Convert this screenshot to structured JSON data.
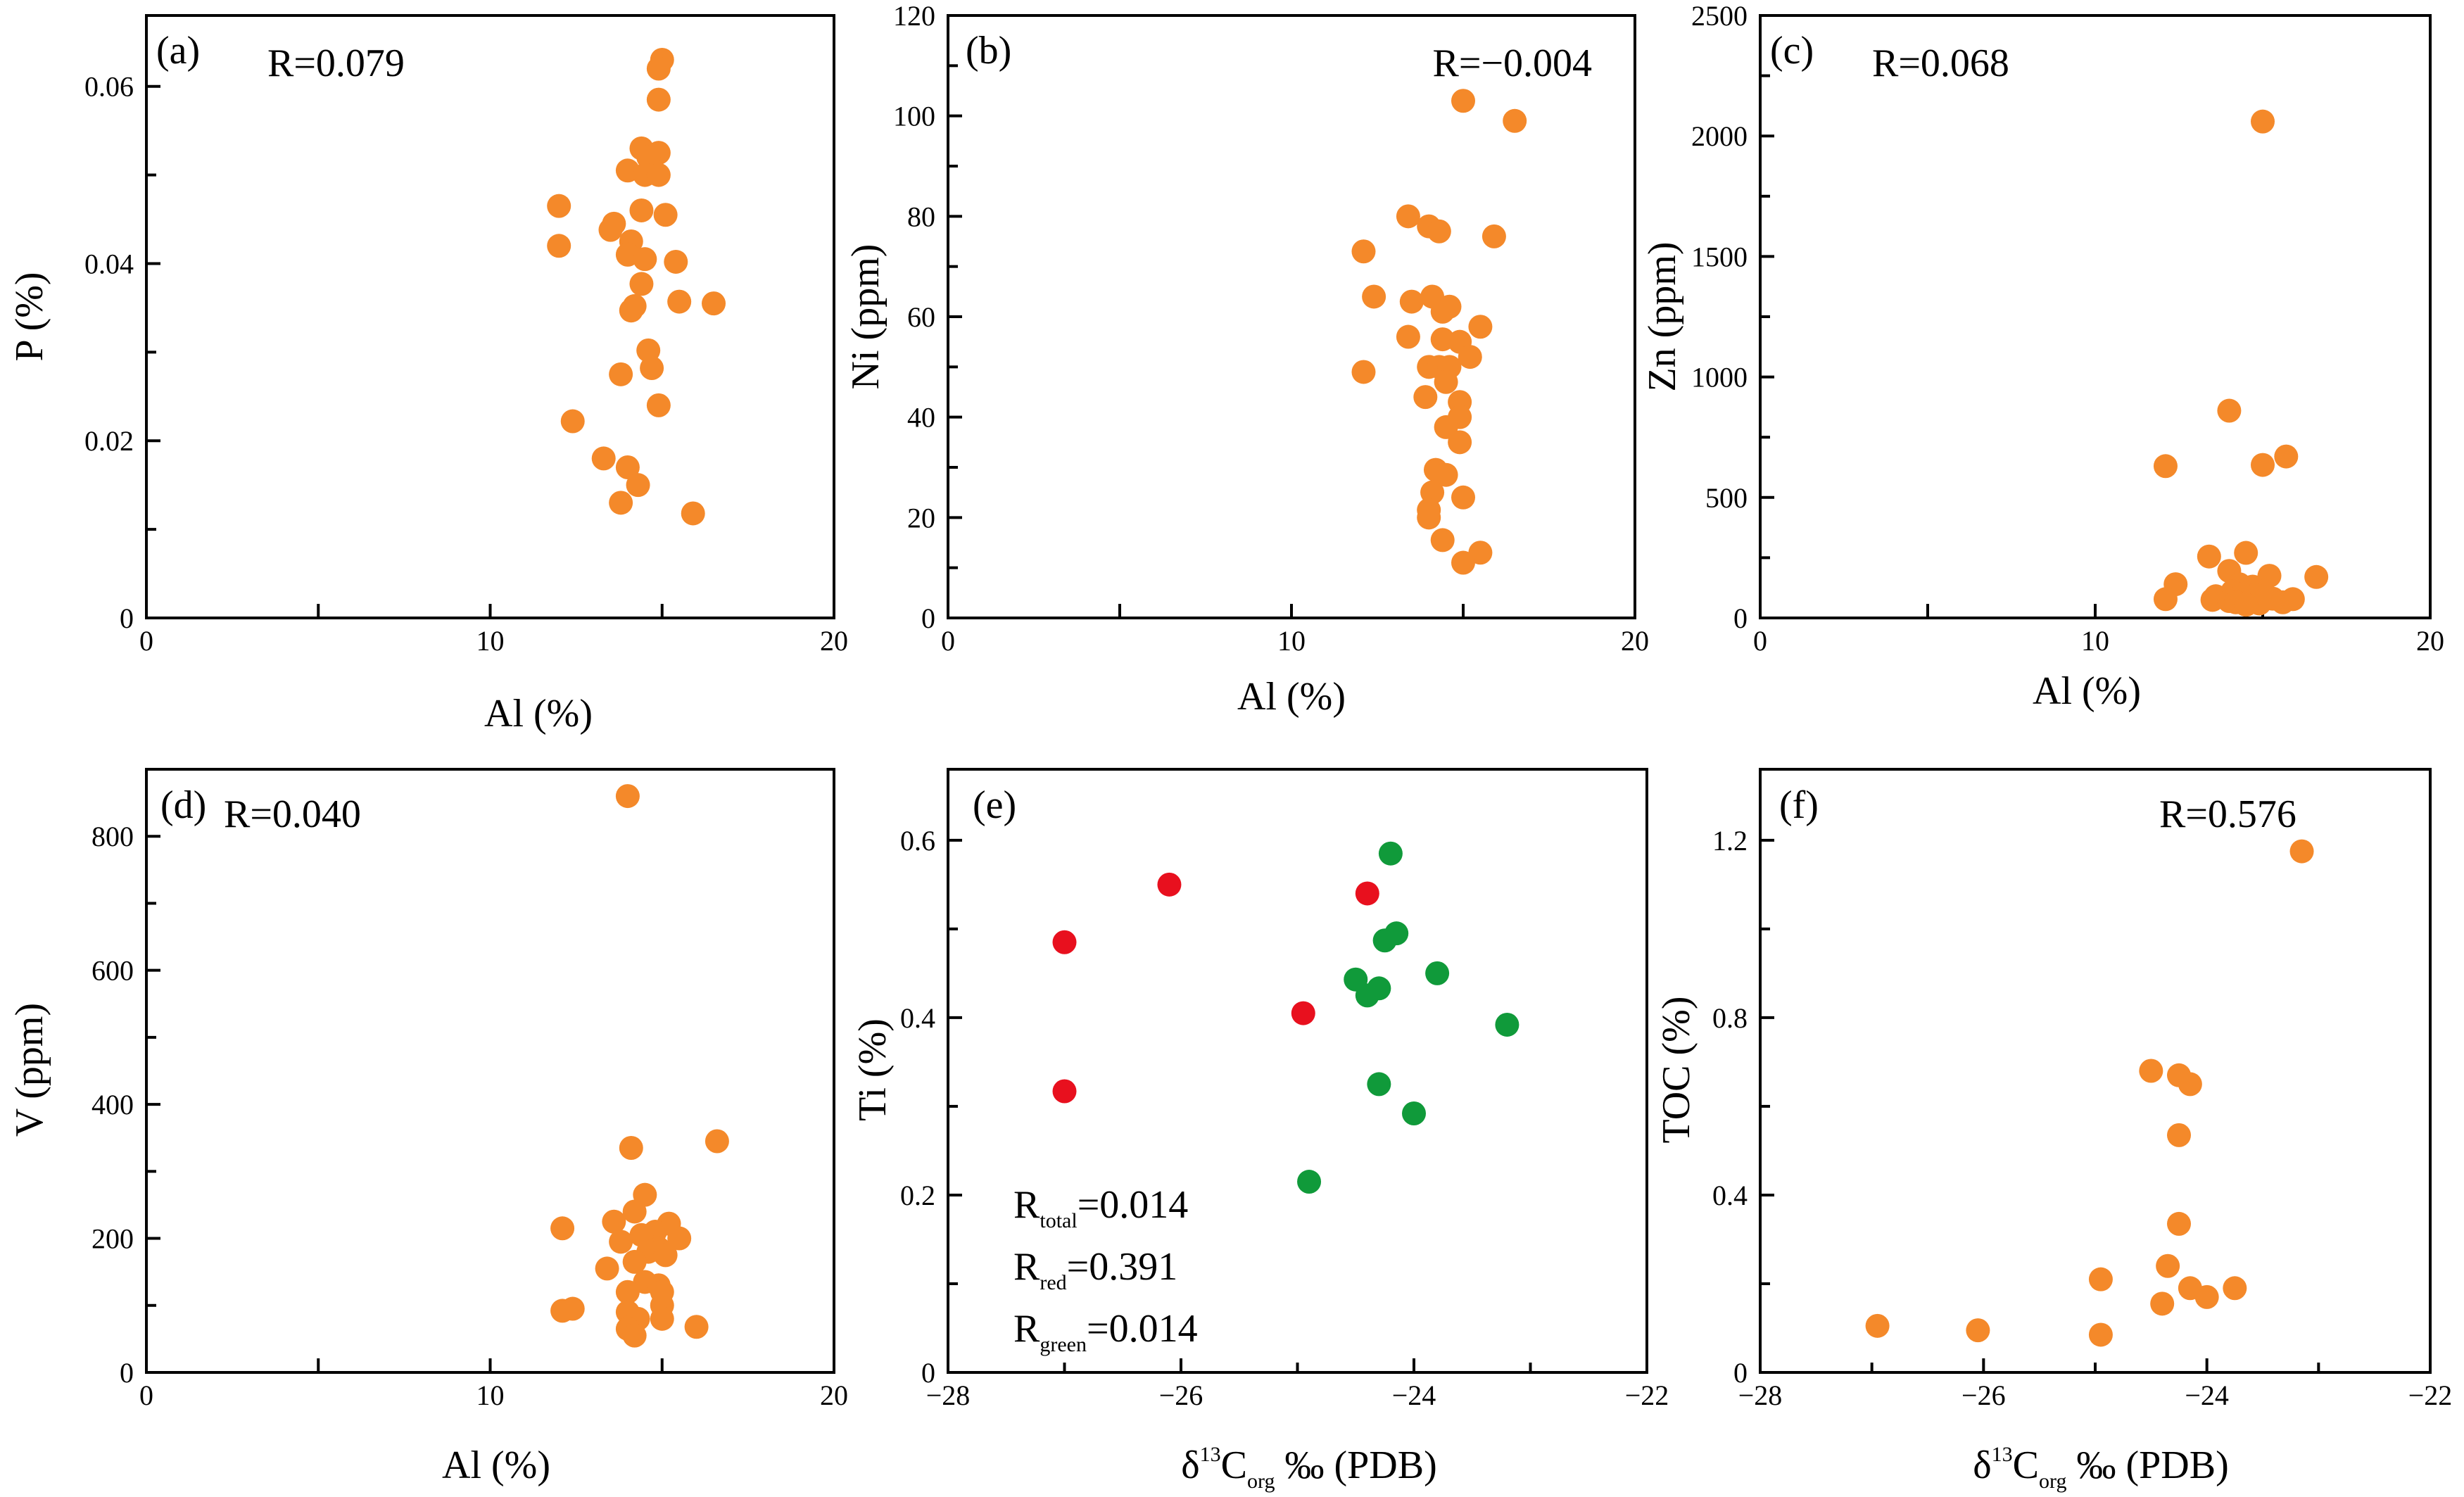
{
  "colors": {
    "orange": "#f4892a",
    "red": "#e8101e",
    "green": "#109a3a"
  },
  "chart_data": [
    {
      "type": "scatter",
      "panel": "(a)",
      "r_text": "R=0.079",
      "xlabel": "Al (%)",
      "ylabel": "P (%)",
      "xlim": [
        0,
        20
      ],
      "ylim": [
        0,
        0.068
      ],
      "x_ticks": [
        0,
        5,
        10,
        15,
        20
      ],
      "x_tick_labels": [
        "0",
        "",
        "10",
        "",
        "20"
      ],
      "y_ticks": [
        0,
        0.02,
        0.04,
        0.06
      ],
      "y_minor_ticks": [
        0.01,
        0.03,
        0.05
      ],
      "y_tick_labels": [
        "0",
        "0.02",
        "0.04",
        "0.06"
      ],
      "series": [
        {
          "name": "samples",
          "color": "orange",
          "points": [
            [
              15.0,
              0.063
            ],
            [
              14.9,
              0.062
            ],
            [
              14.9,
              0.0585
            ],
            [
              14.4,
              0.053
            ],
            [
              14.9,
              0.0525
            ],
            [
              14.6,
              0.052
            ],
            [
              14.0,
              0.0505
            ],
            [
              14.5,
              0.05
            ],
            [
              14.9,
              0.05
            ],
            [
              12.0,
              0.0465
            ],
            [
              14.4,
              0.046
            ],
            [
              15.1,
              0.0455
            ],
            [
              13.6,
              0.0445
            ],
            [
              13.5,
              0.0438
            ],
            [
              14.1,
              0.0425
            ],
            [
              12.0,
              0.042
            ],
            [
              14.0,
              0.041
            ],
            [
              14.5,
              0.0405
            ],
            [
              15.4,
              0.0402
            ],
            [
              14.4,
              0.0377
            ],
            [
              15.5,
              0.0357
            ],
            [
              16.5,
              0.0355
            ],
            [
              14.2,
              0.0352
            ],
            [
              14.1,
              0.0347
            ],
            [
              14.6,
              0.0302
            ],
            [
              14.7,
              0.0282
            ],
            [
              13.8,
              0.0275
            ],
            [
              14.9,
              0.024
            ],
            [
              12.4,
              0.0222
            ],
            [
              13.3,
              0.018
            ],
            [
              14.0,
              0.017
            ],
            [
              14.3,
              0.015
            ],
            [
              13.8,
              0.013
            ],
            [
              15.9,
              0.0118
            ]
          ]
        }
      ]
    },
    {
      "type": "scatter",
      "panel": "(b)",
      "r_text": "R=−0.004",
      "xlabel": "Al (%)",
      "ylabel": "Ni (ppm)",
      "xlim": [
        0,
        20
      ],
      "ylim": [
        0,
        120
      ],
      "x_ticks": [
        0,
        5,
        10,
        15,
        20
      ],
      "x_tick_labels": [
        "0",
        "",
        "10",
        "",
        "20"
      ],
      "y_ticks": [
        0,
        20,
        40,
        60,
        80,
        100,
        120
      ],
      "y_minor_ticks": [
        10,
        30,
        50,
        70,
        90,
        110
      ],
      "y_tick_labels": [
        "0",
        "20",
        "40",
        "60",
        "80",
        "100",
        "120"
      ],
      "series": [
        {
          "name": "samples",
          "color": "orange",
          "points": [
            [
              15.0,
              103
            ],
            [
              16.5,
              99
            ],
            [
              13.4,
              80
            ],
            [
              14.0,
              78
            ],
            [
              14.3,
              77
            ],
            [
              15.9,
              76
            ],
            [
              12.1,
              73
            ],
            [
              12.4,
              64
            ],
            [
              14.1,
              64
            ],
            [
              13.5,
              63
            ],
            [
              14.6,
              62
            ],
            [
              14.4,
              61
            ],
            [
              15.5,
              58
            ],
            [
              13.4,
              56
            ],
            [
              14.4,
              55.5
            ],
            [
              14.9,
              55
            ],
            [
              15.2,
              52
            ],
            [
              14.0,
              50
            ],
            [
              14.3,
              50
            ],
            [
              14.6,
              50
            ],
            [
              12.1,
              49
            ],
            [
              14.5,
              47
            ],
            [
              13.9,
              44
            ],
            [
              14.9,
              43
            ],
            [
              14.9,
              40
            ],
            [
              14.5,
              38
            ],
            [
              14.9,
              35
            ],
            [
              14.2,
              29.5
            ],
            [
              14.5,
              28.5
            ],
            [
              14.1,
              25
            ],
            [
              15.0,
              24
            ],
            [
              14.0,
              21.5
            ],
            [
              14.0,
              20
            ],
            [
              14.4,
              15.5
            ],
            [
              15.5,
              13
            ],
            [
              15.0,
              11
            ]
          ]
        }
      ]
    },
    {
      "type": "scatter",
      "panel": "(c)",
      "r_text": "R=0.068",
      "xlabel": "Al (%)",
      "ylabel": "Zn (ppm)",
      "xlim": [
        0,
        20
      ],
      "ylim": [
        0,
        2500
      ],
      "x_ticks": [
        0,
        5,
        10,
        15,
        20
      ],
      "x_tick_labels": [
        "0",
        "",
        "10",
        "",
        "20"
      ],
      "y_ticks": [
        0,
        500,
        1000,
        1500,
        2000,
        2500
      ],
      "y_minor_ticks": [
        250,
        750,
        1250,
        1750,
        2250
      ],
      "y_tick_labels": [
        "0",
        "500",
        "1000",
        "1500",
        "2000",
        "2500"
      ],
      "series": [
        {
          "name": "samples",
          "color": "orange",
          "points": [
            [
              15.0,
              2060
            ],
            [
              14.0,
              860
            ],
            [
              15.7,
              670
            ],
            [
              15.0,
              635
            ],
            [
              12.1,
              630
            ],
            [
              14.5,
              270
            ],
            [
              13.4,
              255
            ],
            [
              14.0,
              195
            ],
            [
              15.2,
              175
            ],
            [
              16.6,
              170
            ],
            [
              12.4,
              140
            ],
            [
              14.3,
              140
            ],
            [
              14.7,
              130
            ],
            [
              14.1,
              110
            ],
            [
              15.0,
              110
            ],
            [
              14.4,
              100
            ],
            [
              14.8,
              95
            ],
            [
              13.6,
              90
            ],
            [
              14.6,
              85
            ],
            [
              15.3,
              80
            ],
            [
              12.1,
              78
            ],
            [
              15.9,
              78
            ],
            [
              13.5,
              75
            ],
            [
              14.0,
              70
            ],
            [
              14.2,
              65
            ],
            [
              15.6,
              65
            ],
            [
              14.9,
              60
            ],
            [
              14.5,
              55
            ]
          ]
        }
      ]
    },
    {
      "type": "scatter",
      "panel": "(d)",
      "r_text": "R=0.040",
      "xlabel": "Al (%)",
      "ylabel": "V (ppm)",
      "xlim": [
        0,
        20
      ],
      "ylim": [
        0,
        900
      ],
      "x_ticks": [
        0,
        5,
        10,
        15,
        20
      ],
      "x_tick_labels": [
        "0",
        "",
        "10",
        "",
        "20"
      ],
      "y_ticks": [
        0,
        200,
        400,
        600,
        800
      ],
      "y_minor_ticks": [
        100,
        300,
        500,
        700
      ],
      "y_tick_labels": [
        "0",
        "200",
        "400",
        "600",
        "800"
      ],
      "series": [
        {
          "name": "samples",
          "color": "orange",
          "points": [
            [
              14.0,
              860
            ],
            [
              16.6,
              345
            ],
            [
              14.1,
              335
            ],
            [
              14.5,
              265
            ],
            [
              14.2,
              240
            ],
            [
              13.6,
              225
            ],
            [
              15.2,
              222
            ],
            [
              12.1,
              215
            ],
            [
              14.8,
              210
            ],
            [
              14.4,
              205
            ],
            [
              15.5,
              200
            ],
            [
              13.8,
              195
            ],
            [
              14.9,
              185
            ],
            [
              14.6,
              180
            ],
            [
              15.1,
              175
            ],
            [
              14.2,
              165
            ],
            [
              13.4,
              155
            ],
            [
              14.5,
              135
            ],
            [
              14.9,
              130
            ],
            [
              15.0,
              120
            ],
            [
              14.0,
              120
            ],
            [
              15.0,
              100
            ],
            [
              12.4,
              95
            ],
            [
              12.1,
              92
            ],
            [
              14.0,
              90
            ],
            [
              14.3,
              80
            ],
            [
              15.0,
              80
            ],
            [
              16.0,
              68
            ],
            [
              14.0,
              65
            ],
            [
              14.2,
              55
            ]
          ]
        }
      ]
    },
    {
      "type": "scatter",
      "panel": "(e)",
      "xlabel_main": "δ",
      "xlabel_sup": "13",
      "xlabel_c": "C",
      "xlabel_sub": "org",
      "xlabel_rest": " ‰  (PDB)",
      "ylabel": "Ti (%)",
      "xlim": [
        -28,
        -22
      ],
      "ylim": [
        0,
        0.68
      ],
      "x_ticks": [
        -28,
        -26,
        -24,
        -22
      ],
      "x_minor_ticks": [
        -27,
        -25,
        -23
      ],
      "x_tick_labels": [
        "−28",
        "−26",
        "−24",
        "−22"
      ],
      "y_ticks": [
        0,
        0.2,
        0.4,
        0.6
      ],
      "y_minor_ticks": [
        0.1,
        0.3,
        0.5
      ],
      "y_tick_labels": [
        "0",
        "0.2",
        "0.4",
        "0.6"
      ],
      "stats": [
        {
          "main": "R",
          "sub": "total",
          "value": "=0.014"
        },
        {
          "main": "R",
          "sub": "red",
          "value": "=0.391"
        },
        {
          "main": "R",
          "sub": "green",
          "value": "=0.014"
        }
      ],
      "series": [
        {
          "name": "red",
          "color": "red",
          "points": [
            [
              -26.1,
              0.55
            ],
            [
              -27.0,
              0.485
            ],
            [
              -24.4,
              0.54
            ],
            [
              -24.95,
              0.405
            ],
            [
              -27.0,
              0.317
            ]
          ]
        },
        {
          "name": "green",
          "color": "green",
          "points": [
            [
              -24.2,
              0.585
            ],
            [
              -24.15,
              0.495
            ],
            [
              -24.25,
              0.487
            ],
            [
              -23.8,
              0.45
            ],
            [
              -24.5,
              0.443
            ],
            [
              -24.3,
              0.433
            ],
            [
              -24.4,
              0.425
            ],
            [
              -23.2,
              0.392
            ],
            [
              -24.3,
              0.325
            ],
            [
              -24.0,
              0.292
            ],
            [
              -24.9,
              0.215
            ]
          ]
        }
      ]
    },
    {
      "type": "scatter",
      "panel": "(f)",
      "r_text": "R=0.576",
      "xlabel_main": "δ",
      "xlabel_sup": "13",
      "xlabel_c": "C",
      "xlabel_sub": "org",
      "xlabel_rest": " ‰  (PDB)",
      "ylabel": "TOC (%)",
      "xlim": [
        -28,
        -22
      ],
      "ylim": [
        0,
        1.36
      ],
      "x_ticks": [
        -28,
        -26,
        -24,
        -22
      ],
      "x_minor_ticks": [
        -27,
        -25,
        -23
      ],
      "x_tick_labels": [
        "−28",
        "−26",
        "−24",
        "−22"
      ],
      "y_ticks": [
        0,
        0.4,
        0.8,
        1.2
      ],
      "y_minor_ticks": [
        0.2,
        0.6,
        1.0
      ],
      "y_tick_labels": [
        "0",
        "0.4",
        "0.8",
        "1.2"
      ],
      "series": [
        {
          "name": "samples",
          "color": "orange",
          "points": [
            [
              -23.15,
              1.175
            ],
            [
              -24.5,
              0.68
            ],
            [
              -24.25,
              0.67
            ],
            [
              -24.15,
              0.65
            ],
            [
              -24.25,
              0.535
            ],
            [
              -24.25,
              0.335
            ],
            [
              -24.95,
              0.21
            ],
            [
              -24.35,
              0.24
            ],
            [
              -24.15,
              0.19
            ],
            [
              -23.75,
              0.19
            ],
            [
              -24.0,
              0.17
            ],
            [
              -24.4,
              0.155
            ],
            [
              -26.95,
              0.105
            ],
            [
              -26.05,
              0.095
            ],
            [
              -24.95,
              0.085
            ]
          ]
        }
      ]
    }
  ]
}
